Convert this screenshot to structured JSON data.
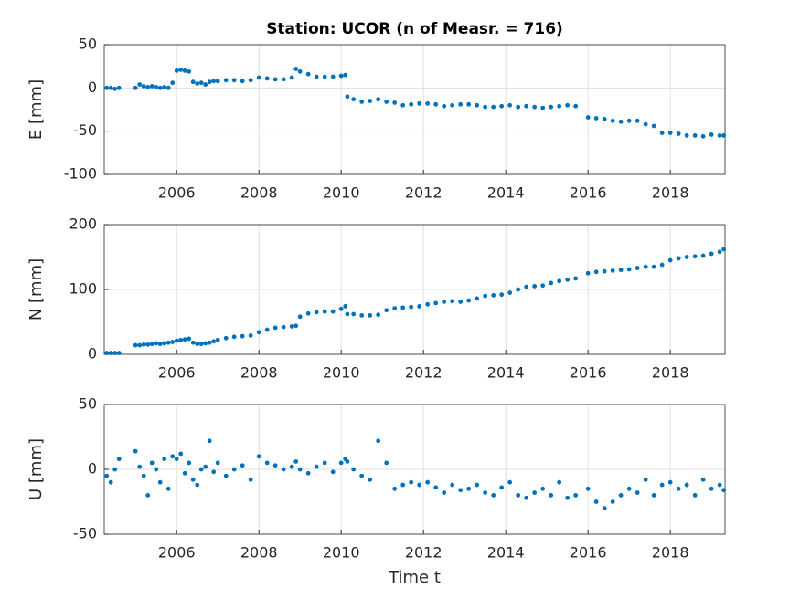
{
  "chart_data": [
    {
      "type": "scatter",
      "title": "Station: UCOR (n of Measr. = 716)",
      "ylabel": "E [mm]",
      "color": "#0072bd",
      "grid": true,
      "xlim": [
        2004.24,
        2019.33
      ],
      "xticks": [
        2006,
        2008,
        2010,
        2012,
        2014,
        2016,
        2018
      ],
      "ylim": [
        -100,
        50
      ],
      "yticks": [
        -100,
        -50,
        0,
        50
      ],
      "x": [
        2004.3,
        2004.4,
        2004.5,
        2004.6,
        2005.0,
        2005.1,
        2005.2,
        2005.3,
        2005.4,
        2005.5,
        2005.6,
        2005.7,
        2005.8,
        2005.9,
        2006.0,
        2006.1,
        2006.2,
        2006.3,
        2006.4,
        2006.5,
        2006.6,
        2006.7,
        2006.8,
        2006.9,
        2007.0,
        2007.2,
        2007.4,
        2007.6,
        2007.8,
        2008.0,
        2008.2,
        2008.4,
        2008.6,
        2008.8,
        2008.9,
        2009.0,
        2009.2,
        2009.4,
        2009.6,
        2009.8,
        2010.0,
        2010.1,
        2010.15,
        2010.3,
        2010.5,
        2010.7,
        2010.9,
        2011.1,
        2011.3,
        2011.5,
        2011.7,
        2011.9,
        2012.1,
        2012.3,
        2012.5,
        2012.7,
        2012.9,
        2013.1,
        2013.3,
        2013.5,
        2013.7,
        2013.9,
        2014.1,
        2014.3,
        2014.5,
        2014.7,
        2014.9,
        2015.1,
        2015.3,
        2015.5,
        2015.7,
        2016.0,
        2016.2,
        2016.4,
        2016.6,
        2016.8,
        2017.0,
        2017.2,
        2017.4,
        2017.6,
        2017.8,
        2018.0,
        2018.2,
        2018.4,
        2018.6,
        2018.8,
        2019.0,
        2019.2,
        2019.3
      ],
      "values": [
        0,
        0,
        -1,
        0,
        0,
        4,
        2,
        1,
        2,
        1,
        0,
        1,
        0,
        6,
        20,
        21,
        20,
        19,
        7,
        5,
        6,
        4,
        7,
        8,
        8,
        9,
        9,
        8,
        9,
        12,
        11,
        10,
        10,
        12,
        22,
        19,
        16,
        13,
        13,
        13,
        14,
        15,
        -10,
        -13,
        -16,
        -15,
        -13,
        -16,
        -17,
        -20,
        -19,
        -18,
        -18,
        -19,
        -21,
        -20,
        -19,
        -19,
        -20,
        -22,
        -22,
        -21,
        -20,
        -22,
        -21,
        -22,
        -23,
        -22,
        -21,
        -20,
        -21,
        -34,
        -35,
        -36,
        -38,
        -39,
        -38,
        -38,
        -42,
        -44,
        -52,
        -52,
        -53,
        -55,
        -55,
        -56,
        -54,
        -55,
        -55
      ]
    },
    {
      "type": "scatter",
      "ylabel": "N [mm]",
      "color": "#0072bd",
      "grid": true,
      "xlim": [
        2004.24,
        2019.33
      ],
      "xticks": [
        2006,
        2008,
        2010,
        2012,
        2014,
        2016,
        2018
      ],
      "ylim": [
        0,
        200
      ],
      "yticks": [
        0,
        100,
        200
      ],
      "x": [
        2004.3,
        2004.4,
        2004.5,
        2004.6,
        2005.0,
        2005.1,
        2005.2,
        2005.3,
        2005.4,
        2005.5,
        2005.6,
        2005.7,
        2005.8,
        2005.9,
        2006.0,
        2006.1,
        2006.2,
        2006.3,
        2006.4,
        2006.5,
        2006.6,
        2006.7,
        2006.8,
        2006.9,
        2007.0,
        2007.2,
        2007.4,
        2007.6,
        2007.8,
        2008.0,
        2008.2,
        2008.4,
        2008.6,
        2008.8,
        2008.9,
        2009.0,
        2009.2,
        2009.4,
        2009.6,
        2009.8,
        2010.0,
        2010.1,
        2010.15,
        2010.3,
        2010.5,
        2010.7,
        2010.9,
        2011.1,
        2011.3,
        2011.5,
        2011.7,
        2011.9,
        2012.1,
        2012.3,
        2012.5,
        2012.7,
        2012.9,
        2013.1,
        2013.3,
        2013.5,
        2013.7,
        2013.9,
        2014.1,
        2014.3,
        2014.5,
        2014.7,
        2014.9,
        2015.1,
        2015.3,
        2015.5,
        2015.7,
        2016.0,
        2016.2,
        2016.4,
        2016.6,
        2016.8,
        2017.0,
        2017.2,
        2017.4,
        2017.6,
        2017.8,
        2018.0,
        2018.2,
        2018.4,
        2018.6,
        2018.8,
        2019.0,
        2019.2,
        2019.3
      ],
      "values": [
        2,
        2,
        2,
        2,
        14,
        14,
        15,
        15,
        16,
        17,
        16,
        17,
        18,
        19,
        21,
        22,
        23,
        24,
        18,
        16,
        16,
        17,
        18,
        20,
        22,
        25,
        27,
        28,
        29,
        34,
        38,
        41,
        42,
        43,
        44,
        58,
        63,
        65,
        66,
        66,
        70,
        74,
        62,
        62,
        60,
        60,
        61,
        68,
        71,
        72,
        73,
        74,
        77,
        79,
        81,
        82,
        81,
        83,
        86,
        90,
        91,
        92,
        95,
        100,
        104,
        105,
        106,
        110,
        113,
        115,
        117,
        125,
        127,
        128,
        129,
        130,
        131,
        133,
        135,
        135,
        138,
        145,
        148,
        150,
        151,
        152,
        155,
        158,
        162
      ]
    },
    {
      "type": "scatter",
      "ylabel": "U [mm]",
      "xlabel": "Time t",
      "color": "#0072bd",
      "grid": true,
      "xlim": [
        2004.24,
        2019.33
      ],
      "xticks": [
        2006,
        2008,
        2010,
        2012,
        2014,
        2016,
        2018
      ],
      "ylim": [
        -50,
        50
      ],
      "yticks": [
        -50,
        0,
        50
      ],
      "x": [
        2004.3,
        2004.4,
        2004.5,
        2004.6,
        2005.0,
        2005.1,
        2005.2,
        2005.3,
        2005.4,
        2005.5,
        2005.6,
        2005.7,
        2005.8,
        2005.9,
        2006.0,
        2006.1,
        2006.2,
        2006.3,
        2006.4,
        2006.5,
        2006.6,
        2006.7,
        2006.8,
        2006.9,
        2007.0,
        2007.2,
        2007.4,
        2007.6,
        2007.8,
        2008.0,
        2008.2,
        2008.4,
        2008.6,
        2008.8,
        2008.9,
        2009.0,
        2009.2,
        2009.4,
        2009.6,
        2009.8,
        2010.0,
        2010.1,
        2010.15,
        2010.3,
        2010.5,
        2010.7,
        2010.9,
        2011.1,
        2011.3,
        2011.5,
        2011.7,
        2011.9,
        2012.1,
        2012.3,
        2012.5,
        2012.7,
        2012.9,
        2013.1,
        2013.3,
        2013.5,
        2013.7,
        2013.9,
        2014.1,
        2014.3,
        2014.5,
        2014.7,
        2014.9,
        2015.1,
        2015.3,
        2015.5,
        2015.7,
        2016.0,
        2016.2,
        2016.4,
        2016.6,
        2016.8,
        2017.0,
        2017.2,
        2017.4,
        2017.6,
        2017.8,
        2018.0,
        2018.2,
        2018.4,
        2018.6,
        2018.8,
        2019.0,
        2019.2,
        2019.3
      ],
      "values": [
        -5,
        -10,
        0,
        8,
        14,
        2,
        -5,
        -20,
        5,
        0,
        -10,
        8,
        -15,
        10,
        8,
        12,
        -3,
        5,
        -8,
        -12,
        0,
        2,
        22,
        -2,
        5,
        -5,
        0,
        3,
        -8,
        10,
        5,
        3,
        0,
        2,
        6,
        0,
        -3,
        2,
        5,
        -2,
        5,
        8,
        6,
        0,
        -5,
        -8,
        22,
        5,
        -15,
        -12,
        -10,
        -12,
        -10,
        -14,
        -18,
        -12,
        -16,
        -15,
        -12,
        -18,
        -20,
        -14,
        -10,
        -20,
        -22,
        -18,
        -15,
        -20,
        -10,
        -22,
        -20,
        -15,
        -25,
        -30,
        -25,
        -20,
        -15,
        -18,
        -8,
        -20,
        -12,
        -10,
        -15,
        -12,
        -20,
        -8,
        -15,
        -12,
        -16
      ]
    }
  ]
}
